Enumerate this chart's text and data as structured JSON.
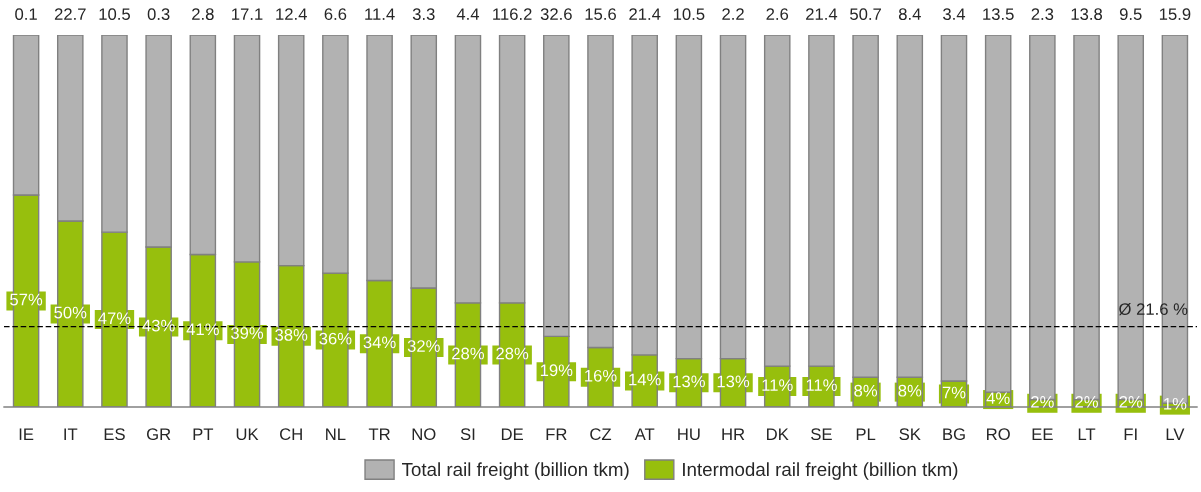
{
  "chart_data": {
    "type": "bar",
    "stacked": true,
    "categories": [
      "IE",
      "IT",
      "ES",
      "GR",
      "PT",
      "UK",
      "CH",
      "NL",
      "TR",
      "NO",
      "SI",
      "DE",
      "FR",
      "CZ",
      "AT",
      "HU",
      "HR",
      "DK",
      "SE",
      "PL",
      "SK",
      "BG",
      "RO",
      "EE",
      "LT",
      "FI",
      "LV"
    ],
    "series": [
      {
        "name": "Intermodal rail freight (billion tkm)",
        "color": "#97bf0d",
        "values": [
          57,
          50,
          47,
          43,
          41,
          39,
          38,
          36,
          34,
          32,
          28,
          28,
          19,
          16,
          14,
          13,
          13,
          11,
          11,
          8,
          8,
          7,
          4,
          2,
          2,
          2,
          1
        ],
        "value_labels": [
          "57%",
          "50%",
          "47%",
          "43%",
          "41%",
          "39%",
          "38%",
          "36%",
          "34%",
          "32%",
          "28%",
          "28%",
          "19%",
          "16%",
          "14%",
          "13%",
          "13%",
          "11%",
          "11%",
          "8%",
          "8%",
          "7%",
          "4%",
          "2%",
          "2%",
          "2%",
          "1%"
        ]
      },
      {
        "name": "Total rail freight (billion tkm)",
        "color": "#b2b2b2",
        "values": [
          43,
          50,
          53,
          57,
          59,
          61,
          62,
          64,
          66,
          68,
          72,
          72,
          81,
          84,
          86,
          87,
          87,
          89,
          89,
          92,
          92,
          93,
          96,
          98,
          98,
          98,
          99
        ]
      }
    ],
    "annotations": [
      {
        "text": "0.1",
        "x": "IE",
        "y": 100
      },
      {
        "text": "22.7",
        "x": "IT",
        "y": 100
      },
      {
        "text": "10.5",
        "x": "ES",
        "y": 100
      },
      {
        "text": "0.3",
        "x": "GR",
        "y": 100
      },
      {
        "text": "2.8",
        "x": "PT",
        "y": 100
      },
      {
        "text": "17.1",
        "x": "UK",
        "y": 100
      },
      {
        "text": "12.4",
        "x": "CH",
        "y": 100
      },
      {
        "text": "6.6",
        "x": "NL",
        "y": 100
      },
      {
        "text": "11.4",
        "x": "TR",
        "y": 100
      },
      {
        "text": "3.3",
        "x": "NO",
        "y": 100
      },
      {
        "text": "4.4",
        "x": "SI",
        "y": 100
      },
      {
        "text": "116.2",
        "x": "DE",
        "y": 100
      },
      {
        "text": "32.6",
        "x": "FR",
        "y": 100
      },
      {
        "text": "15.6",
        "x": "CZ",
        "y": 100
      },
      {
        "text": "21.4",
        "x": "AT",
        "y": 100
      },
      {
        "text": "10.5",
        "x": "HU",
        "y": 100
      },
      {
        "text": "2.2",
        "x": "HR",
        "y": 100
      },
      {
        "text": "2.6",
        "x": "DK",
        "y": 100
      },
      {
        "text": "21.4",
        "x": "SE",
        "y": 100
      },
      {
        "text": "50.7",
        "x": "PL",
        "y": 100
      },
      {
        "text": "8.4",
        "x": "SK",
        "y": 100
      },
      {
        "text": "3.4",
        "x": "BG",
        "y": 100
      },
      {
        "text": "13.5",
        "x": "RO",
        "y": 100
      },
      {
        "text": "2.3",
        "x": "EE",
        "y": 100
      },
      {
        "text": "13.8",
        "x": "LT",
        "y": 100
      },
      {
        "text": "9.5",
        "x": "FI",
        "y": 100
      },
      {
        "text": "15.9",
        "x": "LV",
        "y": 100
      }
    ],
    "ref_lines": [
      {
        "axis": "y",
        "value": 21.6,
        "label": "Ø 21.6 %",
        "color": "#000000",
        "line_style": "dashed"
      }
    ],
    "ylim": [
      0,
      100
    ],
    "tick_labels": "x",
    "legend": "bottom"
  }
}
